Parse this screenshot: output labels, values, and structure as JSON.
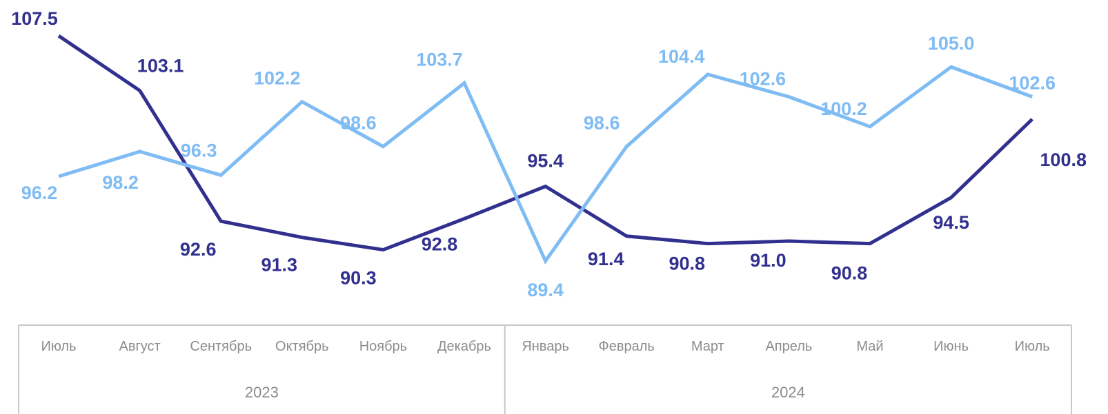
{
  "chart_data": {
    "type": "line",
    "categories": [
      "Июль",
      "Август",
      "Сентябрь",
      "Октябрь",
      "Ноябрь",
      "Декабрь",
      "Январь",
      "Февраль",
      "Март",
      "Апрель",
      "Май",
      "Июнь",
      "Июль"
    ],
    "groups": [
      {
        "label": "2023",
        "count": 6
      },
      {
        "label": "2024",
        "count": 7
      }
    ],
    "series": [
      {
        "color": "#32308f",
        "values": [
          107.5,
          103.1,
          92.6,
          91.3,
          90.3,
          92.8,
          95.4,
          91.4,
          90.8,
          91.0,
          90.8,
          94.5,
          100.8
        ]
      },
      {
        "color": "#7fbcf4",
        "values": [
          96.2,
          98.2,
          96.3,
          102.2,
          98.6,
          103.7,
          89.4,
          98.6,
          104.4,
          102.6,
          100.2,
          105.0,
          102.6
        ]
      }
    ],
    "value_labels": [
      [
        "107.5",
        "103.1",
        "92.6",
        "91.3",
        "90.3",
        "92.8",
        "95.4",
        "91.4",
        "90.8",
        "91.0",
        "90.8",
        "94.5",
        "100.8"
      ],
      [
        "96.2",
        "98.2",
        "96.3",
        "102.2",
        "98.6",
        "103.7",
        "89.4",
        "98.6",
        "104.4",
        "102.6",
        "100.2",
        "105.0",
        "102.6"
      ]
    ],
    "ylim": [
      86,
      110
    ],
    "grid": false,
    "legend": "none"
  }
}
